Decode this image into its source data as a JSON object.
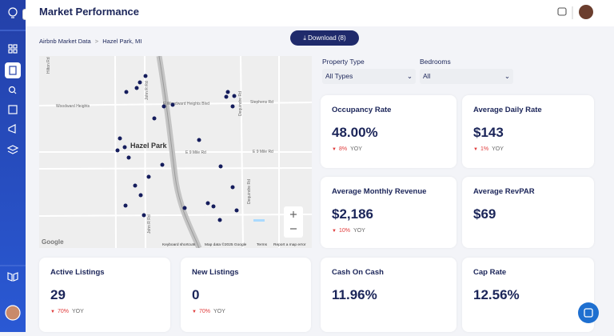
{
  "header": {
    "title": "Market Performance"
  },
  "breadcrumb": {
    "root": "Airbnb Market Data",
    "separator": ">",
    "location": "Hazel Park, MI"
  },
  "download_button": "Download (8)",
  "filters": [
    {
      "label": "Property Type",
      "value": "All Types"
    },
    {
      "label": "Bedrooms",
      "value": "All"
    }
  ],
  "map": {
    "labels": [
      "Hilton Rd",
      "Woodward Heights",
      "E Woodward Heights Blvd",
      "Stephens Rd",
      "John R Rd",
      "Dequindre Rd",
      "Hazel Park",
      "E 9 Mile Rd",
      "E 9 Mile Rd",
      "Dequindre Rd",
      "John R Rd"
    ],
    "logo": "Google",
    "footer": [
      "Keyboard shortcuts",
      "Map data ©2025 Google",
      "Terms",
      "Report a map error"
    ]
  },
  "cards": [
    {
      "title": "Occupancy Rate",
      "value": "48.00%",
      "change": "8%",
      "change_label": "YOY"
    },
    {
      "title": "Average Daily Rate",
      "value": "$143",
      "change": "1%",
      "change_label": "YOY"
    },
    {
      "title": "Average Monthly Revenue",
      "value": "$2,186",
      "change": "10%",
      "change_label": "YOY"
    },
    {
      "title": "Average RevPAR",
      "value": "$69"
    },
    {
      "title": "Active Listings",
      "value": "29",
      "change": "70%",
      "change_label": "YOY"
    },
    {
      "title": "New Listings",
      "value": "0",
      "change": "70%",
      "change_label": "YOY"
    },
    {
      "title": "Cash On Cash",
      "value": "11.96%"
    },
    {
      "title": "Cap Rate",
      "value": "12.56%"
    }
  ]
}
